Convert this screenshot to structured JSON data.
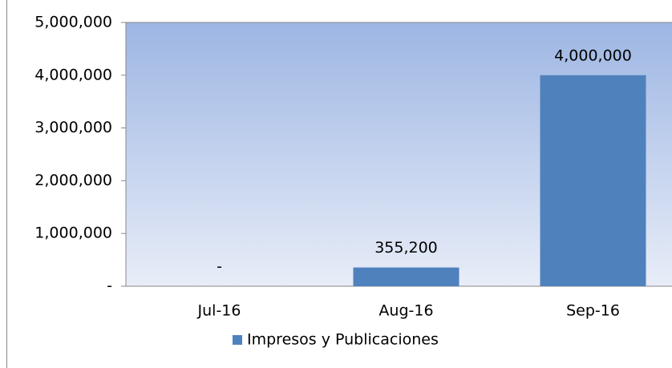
{
  "chart_data": {
    "type": "bar",
    "categories": [
      "Jul-16",
      "Aug-16",
      "Sep-16"
    ],
    "series": [
      {
        "name": "Impresos y Publicaciones",
        "color": "#4f81bd",
        "values": [
          0,
          355200,
          4000000
        ]
      }
    ],
    "value_labels": [
      "-",
      "355,200",
      "4,000,000"
    ],
    "ylim": [
      0,
      5000000
    ],
    "yticks": [
      {
        "value": 0,
        "label": "-"
      },
      {
        "value": 1000000,
        "label": "1,000,000"
      },
      {
        "value": 2000000,
        "label": "2,000,000"
      },
      {
        "value": 3000000,
        "label": "3,000,000"
      },
      {
        "value": 4000000,
        "label": "4,000,000"
      },
      {
        "value": 5000000,
        "label": "5,000,000"
      }
    ],
    "legend": "bottom"
  }
}
